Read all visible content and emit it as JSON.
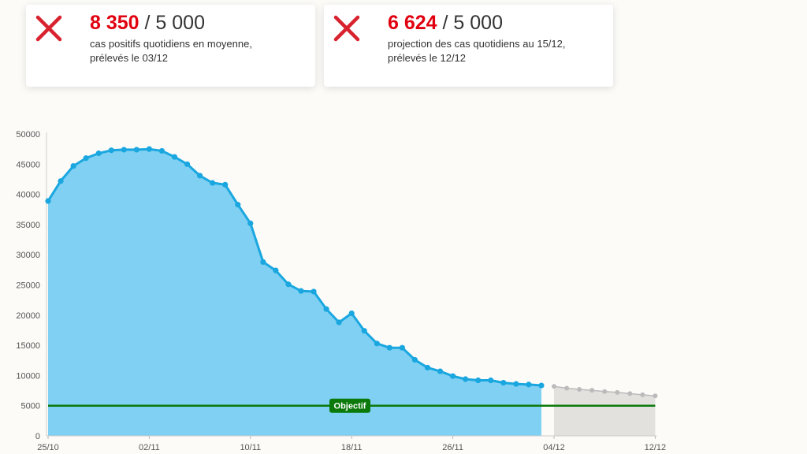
{
  "cards": [
    {
      "value": "8 350",
      "target": "/ 5 000",
      "line1": "cas positifs quotidiens en moyenne,",
      "line2": "prélevés le 03/12",
      "icon": "cross-icon",
      "status_color": "#e1000f"
    },
    {
      "value": "6 624",
      "target": "/ 5 000",
      "line1": "projection des cas quotidiens au 15/12,",
      "line2": "prélevés le 12/12",
      "icon": "cross-icon",
      "status_color": "#e1000f"
    }
  ],
  "chart_data": {
    "type": "area",
    "title": "",
    "xlabel": "",
    "ylabel": "",
    "ylim": [
      0,
      50000
    ],
    "yticks": [
      0,
      5000,
      10000,
      15000,
      20000,
      25000,
      30000,
      35000,
      40000,
      45000,
      50000
    ],
    "xticks": [
      "25/10",
      "02/11",
      "10/11",
      "18/11",
      "26/11",
      "04/12",
      "12/12"
    ],
    "grid": false,
    "series": [
      {
        "type": "area",
        "color": "#1aa7e0",
        "fill": "#7fd0f2",
        "x": [
          "25/10",
          "26/10",
          "27/10",
          "28/10",
          "29/10",
          "30/10",
          "31/10",
          "01/11",
          "02/11",
          "03/11",
          "04/11",
          "05/11",
          "06/11",
          "07/11",
          "08/11",
          "09/11",
          "10/11",
          "11/11",
          "12/11",
          "13/11",
          "14/11",
          "15/11",
          "16/11",
          "17/11",
          "18/11",
          "19/11",
          "20/11",
          "21/11",
          "22/11",
          "23/11",
          "24/11",
          "25/11",
          "26/11",
          "27/11",
          "28/11",
          "29/11",
          "30/11",
          "01/12",
          "02/12",
          "03/12"
        ],
        "values": [
          38900,
          42200,
          44700,
          46000,
          46800,
          47300,
          47400,
          47400,
          47500,
          47200,
          46200,
          45000,
          43100,
          41900,
          41600,
          38300,
          35200,
          28800,
          27400,
          25100,
          24000,
          23900,
          21000,
          18800,
          20300,
          17400,
          15300,
          14600,
          14600,
          12600,
          11300,
          10700,
          9900,
          9400,
          9200,
          9200,
          8800,
          8600,
          8500,
          8350
        ]
      },
      {
        "type": "area",
        "color": "#bbbbbb",
        "fill": "#e3e1de",
        "x": [
          "04/12",
          "05/12",
          "06/12",
          "07/12",
          "08/12",
          "09/12",
          "10/12",
          "11/12",
          "12/12"
        ],
        "values": [
          8200,
          7900,
          7700,
          7550,
          7350,
          7200,
          7000,
          6800,
          6624
        ]
      }
    ],
    "reference_line": {
      "label": "Objectif",
      "value": 5000,
      "color": "#0b7a0b"
    }
  }
}
